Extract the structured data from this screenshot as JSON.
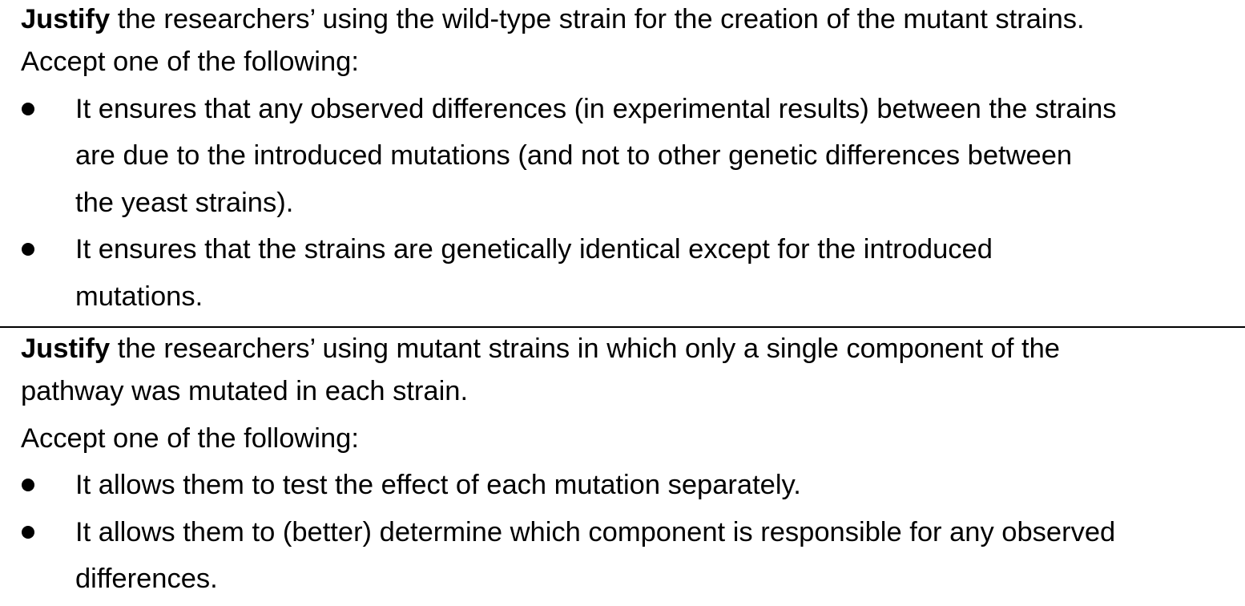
{
  "section1": {
    "question_bold": "Justify",
    "question_rest": " the researchers’ using the wild-type strain for the creation of the mutant strains.",
    "accept_text": "Accept one of the following:",
    "bullets": [
      {
        "line1": "It ensures that any observed differences (in experimental results) between the strains",
        "line2": "are due to the introduced mutations (and not to other genetic differences between",
        "line3": "the yeast strains)."
      },
      {
        "line1": "It ensures that the strains are genetically identical except for the introduced",
        "line2": "mutations."
      }
    ]
  },
  "section2": {
    "question_bold": "Justify",
    "question_rest_line1": " the researchers’ using mutant strains in which only a single component of the",
    "question_rest_line2": "pathway was mutated in each strain.",
    "accept_text": "Accept one of the following:",
    "bullets": [
      {
        "line1": "It allows them to test the effect of each mutation separately."
      },
      {
        "line1": "It allows them to (better) determine which component is responsible for any observed",
        "line2": "differences."
      }
    ]
  }
}
